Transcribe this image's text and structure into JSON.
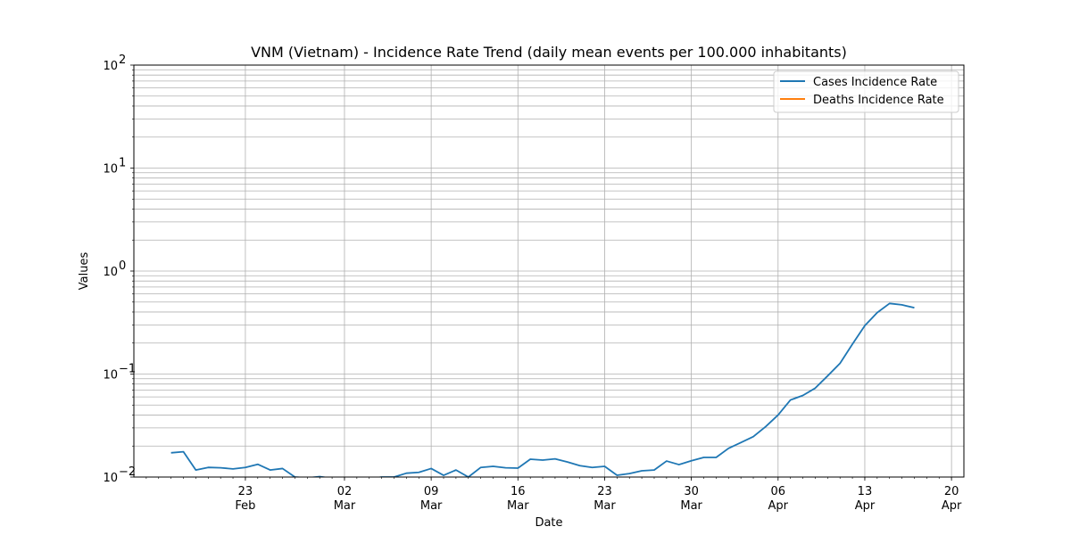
{
  "chart_data": {
    "type": "line",
    "title": "VNM (Vietnam) - Incidence Rate Trend (daily mean events per 100.000 inhabitants)",
    "xlabel": "Date",
    "ylabel": "Values",
    "yscale": "log",
    "ylim": [
      0.01,
      100
    ],
    "y_ticks": [
      {
        "value": 0.01,
        "base": "10",
        "exp": "−2"
      },
      {
        "value": 0.1,
        "base": "10",
        "exp": "−1"
      },
      {
        "value": 1,
        "base": "10",
        "exp": "0"
      },
      {
        "value": 10,
        "base": "10",
        "exp": "1"
      },
      {
        "value": 100,
        "base": "10",
        "exp": "2"
      }
    ],
    "xlim": [
      "2020-02-14",
      "2020-04-21"
    ],
    "x_ticks": [
      {
        "date": "2020-02-23",
        "day": "23",
        "month": "Feb"
      },
      {
        "date": "2020-03-02",
        "day": "02",
        "month": "Mar"
      },
      {
        "date": "2020-03-09",
        "day": "09",
        "month": "Mar"
      },
      {
        "date": "2020-03-16",
        "day": "16",
        "month": "Mar"
      },
      {
        "date": "2020-03-23",
        "day": "23",
        "month": "Mar"
      },
      {
        "date": "2020-03-30",
        "day": "30",
        "month": "Mar"
      },
      {
        "date": "2020-04-06",
        "day": "06",
        "month": "Apr"
      },
      {
        "date": "2020-04-13",
        "day": "13",
        "month": "Apr"
      },
      {
        "date": "2020-04-20",
        "day": "20",
        "month": "Apr"
      }
    ],
    "grid": true,
    "legend": {
      "placement": "top-right"
    },
    "series": [
      {
        "name": "Cases Incidence Rate",
        "color": "#1f77b4",
        "points": [
          [
            "2020-02-17",
            0.0172
          ],
          [
            "2020-02-18",
            0.0176
          ],
          [
            "2020-02-19",
            0.0117
          ],
          [
            "2020-02-20",
            0.0124
          ],
          [
            "2020-02-21",
            0.0123
          ],
          [
            "2020-02-22",
            0.012
          ],
          [
            "2020-02-23",
            0.0124
          ],
          [
            "2020-02-24",
            0.0133
          ],
          [
            "2020-02-25",
            0.0117
          ],
          [
            "2020-02-26",
            0.0121
          ],
          [
            "2020-02-27",
            0.01
          ],
          [
            "2020-02-28",
            0.0098
          ],
          [
            "2020-02-29",
            0.0101
          ],
          [
            "2020-03-01",
            0.0097
          ],
          [
            "2020-03-02",
            0.0096
          ],
          [
            "2020-03-03",
            0.0095
          ],
          [
            "2020-03-04",
            0.0096
          ],
          [
            "2020-03-05",
            0.01
          ],
          [
            "2020-03-06",
            0.01
          ],
          [
            "2020-03-07",
            0.0109
          ],
          [
            "2020-03-08",
            0.0111
          ],
          [
            "2020-03-09",
            0.0121
          ],
          [
            "2020-03-10",
            0.0104
          ],
          [
            "2020-03-11",
            0.0117
          ],
          [
            "2020-03-12",
            0.01
          ],
          [
            "2020-03-13",
            0.0124
          ],
          [
            "2020-03-14",
            0.0127
          ],
          [
            "2020-03-15",
            0.0123
          ],
          [
            "2020-03-16",
            0.0122
          ],
          [
            "2020-03-17",
            0.0149
          ],
          [
            "2020-03-18",
            0.0146
          ],
          [
            "2020-03-19",
            0.015
          ],
          [
            "2020-03-20",
            0.014
          ],
          [
            "2020-03-21",
            0.0129
          ],
          [
            "2020-03-22",
            0.0124
          ],
          [
            "2020-03-23",
            0.0127
          ],
          [
            "2020-03-24",
            0.0104
          ],
          [
            "2020-03-25",
            0.0108
          ],
          [
            "2020-03-26",
            0.0115
          ],
          [
            "2020-03-27",
            0.0117
          ],
          [
            "2020-03-28",
            0.0143
          ],
          [
            "2020-03-29",
            0.0132
          ],
          [
            "2020-03-30",
            0.0144
          ],
          [
            "2020-03-31",
            0.0155
          ],
          [
            "2020-04-01",
            0.0155
          ],
          [
            "2020-04-02",
            0.019
          ],
          [
            "2020-04-03",
            0.0216
          ],
          [
            "2020-04-04",
            0.0247
          ],
          [
            "2020-04-05",
            0.0309
          ],
          [
            "2020-04-06",
            0.04
          ],
          [
            "2020-04-07",
            0.056
          ],
          [
            "2020-04-08",
            0.062
          ],
          [
            "2020-04-09",
            0.073
          ],
          [
            "2020-04-10",
            0.096
          ],
          [
            "2020-04-11",
            0.127
          ],
          [
            "2020-04-12",
            0.195
          ],
          [
            "2020-04-13",
            0.295
          ],
          [
            "2020-04-14",
            0.395
          ],
          [
            "2020-04-15",
            0.485
          ],
          [
            "2020-04-16",
            0.47
          ],
          [
            "2020-04-17",
            0.44
          ]
        ]
      },
      {
        "name": "Deaths Incidence Rate",
        "color": "#ff7f0e",
        "points": []
      }
    ]
  }
}
